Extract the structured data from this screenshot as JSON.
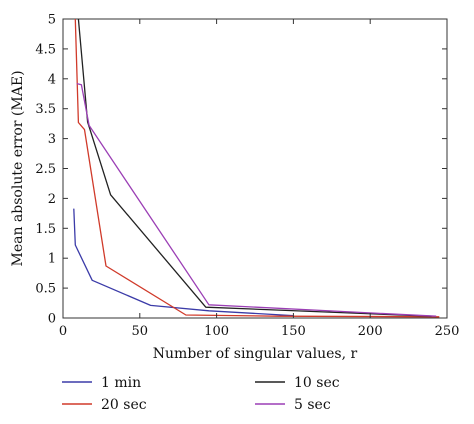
{
  "chart_data": {
    "type": "line",
    "xlabel": "Number of singular values, r",
    "ylabel": "Mean absolute error (MAE)",
    "xlim": [
      0,
      250
    ],
    "ylim": [
      0,
      5
    ],
    "xticks": [
      0,
      50,
      100,
      150,
      200,
      250
    ],
    "yticks": [
      0,
      0.5,
      1,
      1.5,
      2,
      2.5,
      3,
      3.5,
      4,
      4.5,
      5
    ],
    "xtick_labels": [
      "0",
      "50",
      "100",
      "150",
      "200",
      "250"
    ],
    "ytick_labels": [
      "0",
      "0.5",
      "1",
      "1.5",
      "2",
      "2.5",
      "3",
      "3.5",
      "4",
      "4.5",
      "5"
    ],
    "grid": false,
    "legend_position": "below plot",
    "series": [
      {
        "name": "1 min",
        "color": "#3b3ba8",
        "points": [
          [
            7,
            1.83
          ],
          [
            8,
            1.22
          ],
          [
            19,
            0.63
          ],
          [
            57,
            0.21
          ],
          [
            95,
            0.12
          ],
          [
            150,
            0.04
          ]
        ]
      },
      {
        "name": "20 sec",
        "color": "#d03a2a",
        "points": [
          [
            8,
            5.0
          ],
          [
            10,
            3.27
          ],
          [
            14,
            3.15
          ],
          [
            28,
            0.87
          ],
          [
            80,
            0.05
          ],
          [
            140,
            0.03
          ],
          [
            245,
            0.02
          ]
        ]
      },
      {
        "name": "10 sec",
        "color": "#222222",
        "points": [
          [
            10,
            5.0
          ],
          [
            16,
            3.28
          ],
          [
            31,
            2.06
          ],
          [
            93,
            0.18
          ],
          [
            240,
            0.03
          ]
        ]
      },
      {
        "name": "5 sec",
        "color": "#9b3fb5",
        "points": [
          [
            9,
            3.92
          ],
          [
            12,
            3.9
          ],
          [
            17,
            3.22
          ],
          [
            95,
            0.22
          ],
          [
            243,
            0.03
          ]
        ]
      }
    ]
  }
}
